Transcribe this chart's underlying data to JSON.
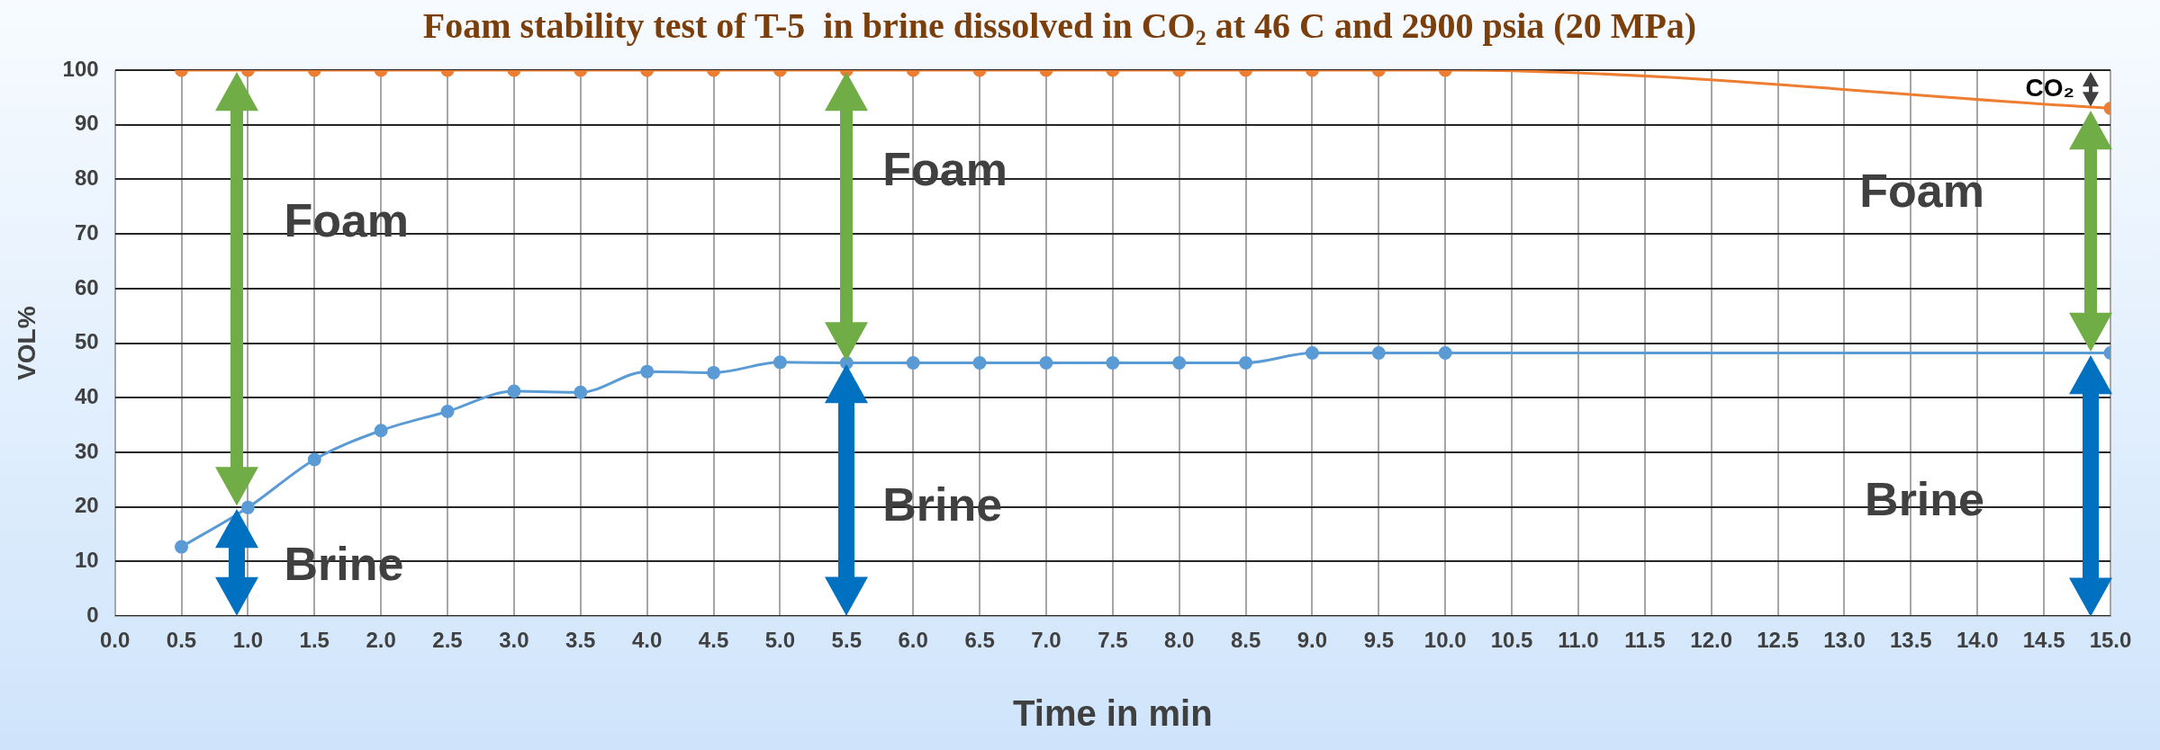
{
  "chart_data": {
    "type": "line",
    "title": "Foam stability test of T-5  in brine dissolved in CO₂ at 46 C and 2900 psia (20 MPa)",
    "xlabel": "Time in min",
    "ylabel": "VOL%",
    "x": [
      0.5,
      1,
      1.5,
      2,
      2.5,
      3,
      3.5,
      4,
      4.5,
      5,
      5.5,
      6,
      6.5,
      7,
      7.5,
      8,
      8.5,
      9,
      9.5,
      10,
      15
    ],
    "series": [
      {
        "color": "#5b9bd5",
        "values": [
          12.7,
          19.9,
          28.7,
          34,
          37.5,
          41.2,
          41,
          44.8,
          44.6,
          46.5,
          46.4,
          46.4,
          46.4,
          46.4,
          46.4,
          46.4,
          46.4,
          48.2,
          48.2,
          48.2,
          48.2
        ]
      },
      {
        "color": "#ed7d31",
        "values": [
          100,
          100,
          100,
          100,
          100,
          100,
          100,
          100,
          100,
          100,
          100,
          100,
          100,
          100,
          100,
          100,
          100,
          100,
          100,
          100,
          93
        ]
      }
    ],
    "xlim": [
      0,
      15
    ],
    "xticks": [
      {
        "value": 0,
        "label": "0.0"
      },
      {
        "value": 0.5,
        "label": "0.5"
      },
      {
        "value": 1,
        "label": "1.0"
      },
      {
        "value": 1.5,
        "label": "1.5"
      },
      {
        "value": 2,
        "label": "2.0"
      },
      {
        "value": 2.5,
        "label": "2.5"
      },
      {
        "value": 3,
        "label": "3.0"
      },
      {
        "value": 3.5,
        "label": "3.5"
      },
      {
        "value": 4,
        "label": "4.0"
      },
      {
        "value": 4.5,
        "label": "4.5"
      },
      {
        "value": 5,
        "label": "5.0"
      },
      {
        "value": 5.5,
        "label": "5.5"
      },
      {
        "value": 6,
        "label": "6.0"
      },
      {
        "value": 6.5,
        "label": "6.5"
      },
      {
        "value": 7,
        "label": "7.0"
      },
      {
        "value": 7.5,
        "label": "7.5"
      },
      {
        "value": 8,
        "label": "8.0"
      },
      {
        "value": 8.5,
        "label": "8.5"
      },
      {
        "value": 9,
        "label": "9.0"
      },
      {
        "value": 9.5,
        "label": "9.5"
      },
      {
        "value": 10,
        "label": "10.0"
      },
      {
        "value": 10.5,
        "label": "10.5"
      },
      {
        "value": 11,
        "label": "11.0"
      },
      {
        "value": 11.5,
        "label": "11.5"
      },
      {
        "value": 12,
        "label": "12.0"
      },
      {
        "value": 12.5,
        "label": "12.5"
      },
      {
        "value": 13,
        "label": "13.0"
      },
      {
        "value": 13.5,
        "label": "13.5"
      },
      {
        "value": 14,
        "label": "14.0"
      },
      {
        "value": 14.5,
        "label": "14.5"
      },
      {
        "value": 15,
        "label": "15.0"
      }
    ],
    "ylim": [
      0,
      100
    ],
    "yticks": [
      0,
      10,
      20,
      30,
      40,
      50,
      60,
      70,
      80,
      90,
      100
    ],
    "grid": true,
    "legend": false,
    "marker": "circle",
    "line_style": "solid",
    "annotations": [
      "Foam",
      "Brine",
      "Foam",
      "Brine",
      "Foam",
      "Brine",
      "CO₂"
    ]
  }
}
